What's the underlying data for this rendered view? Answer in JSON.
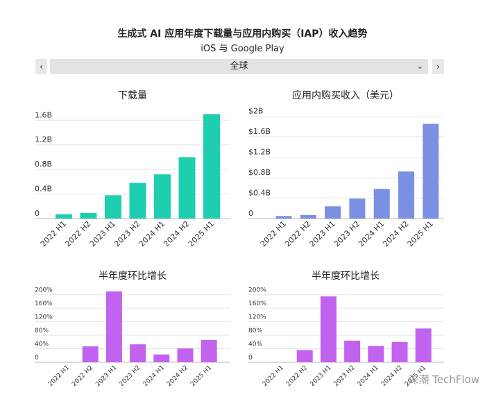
{
  "header": {
    "title": "生成式 AI 应用年度下载量与应用内购买（IAP）收入趋势",
    "subtitle": "iOS 与 Google Play"
  },
  "selector": {
    "prev": "‹",
    "next": "›",
    "value": "全球",
    "chevron": "chevron-down-icon"
  },
  "watermark": "深潮 TechFlow",
  "chart_data": [
    {
      "type": "bar",
      "title": "下载量",
      "color": "#1dcfb0",
      "categories": [
        "2022 H1",
        "2022 H2",
        "2023 H1",
        "2023 H2",
        "2024 H1",
        "2024 H2",
        "2025 H1"
      ],
      "values": [
        0.07,
        0.09,
        0.38,
        0.58,
        0.72,
        1.0,
        1.7
      ],
      "yticks": [
        0,
        0.4,
        0.8,
        1.2,
        1.6
      ],
      "ytick_labels": [
        "0",
        "0.4B",
        "0.8B",
        "1.2B",
        "1.6B"
      ],
      "ylim": [
        0,
        1.75
      ]
    },
    {
      "type": "bar",
      "title": "应用内购买收入（美元）",
      "color": "#7b8fe3",
      "categories": [
        "2022 H1",
        "2022 H2",
        "2023 H1",
        "2023 H2",
        "2024 H1",
        "2024 H2",
        "2025 H1"
      ],
      "values": [
        0.05,
        0.07,
        0.24,
        0.39,
        0.58,
        0.92,
        1.85
      ],
      "yticks": [
        0,
        0.4,
        0.8,
        1.2,
        1.6,
        2.0
      ],
      "ytick_labels": [
        "0",
        "$0.4B",
        "$0.8B",
        "$1.2B",
        "$1.6B",
        "$2B"
      ],
      "ylim": [
        0,
        2.1
      ]
    },
    {
      "type": "bar",
      "title": "半年度环比增长",
      "color": "#c263ef",
      "categories": [
        "2022 H1",
        "2022 H2",
        "2023 H1",
        "2023 H2",
        "2024 H1",
        "2024 H2",
        "2025 H1"
      ],
      "values": [
        0,
        47,
        210,
        53,
        23,
        41,
        66
      ],
      "yticks": [
        0,
        40,
        80,
        120,
        160,
        200
      ],
      "ytick_labels": [
        "0",
        "40%",
        "80%",
        "120%",
        "160%",
        "200%"
      ],
      "ylim": [
        0,
        220
      ]
    },
    {
      "type": "bar",
      "title": "半年度环比增长",
      "color": "#c263ef",
      "categories": [
        "2022 H1",
        "2022 H2",
        "2023 H1",
        "2023 H2",
        "2024 H1",
        "2024 H2",
        "2025 H1"
      ],
      "values": [
        0,
        36,
        195,
        64,
        48,
        60,
        100
      ],
      "yticks": [
        0,
        40,
        80,
        120,
        160,
        200
      ],
      "ytick_labels": [
        "0",
        "40%",
        "80%",
        "120%",
        "160%",
        "200%"
      ],
      "ylim": [
        0,
        220
      ]
    }
  ]
}
